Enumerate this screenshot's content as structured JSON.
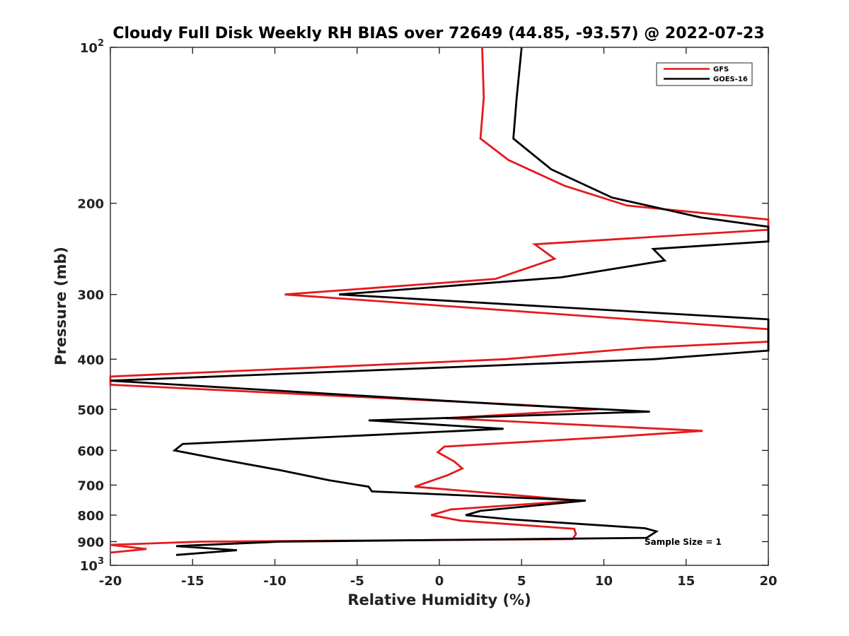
{
  "chart_data": {
    "type": "line",
    "title": "Cloudy Full Disk Weekly RH BIAS over 72649 (44.85, -93.57) @ 2022-07-23",
    "xlabel": "Relative Humidity (%)",
    "ylabel": "Pressure (mb)",
    "xlim": [
      -20,
      20
    ],
    "ylim": [
      1000,
      100
    ],
    "yscale": "log",
    "y_reversed": true,
    "grid": false,
    "legend_position": "top-right",
    "x_ticks": [
      -20,
      -15,
      -10,
      -5,
      0,
      5,
      10,
      15,
      20
    ],
    "x_tick_labels": [
      "-20",
      "-15",
      "-10",
      "-5",
      "0",
      "5",
      "10",
      "15",
      "20"
    ],
    "y_ticks": [
      100,
      200,
      300,
      400,
      500,
      600,
      700,
      800,
      900,
      1000
    ],
    "y_tick_labels": [
      {
        "base": "10",
        "exp": "2"
      },
      {
        "base": "200",
        "exp": ""
      },
      {
        "base": "300",
        "exp": ""
      },
      {
        "base": "400",
        "exp": ""
      },
      {
        "base": "500",
        "exp": ""
      },
      {
        "base": "600",
        "exp": ""
      },
      {
        "base": "700",
        "exp": ""
      },
      {
        "base": "800",
        "exp": ""
      },
      {
        "base": "900",
        "exp": ""
      },
      {
        "base": "10",
        "exp": "3"
      }
    ],
    "annotation": "Sample Size = 1",
    "series": [
      {
        "name": "GFS",
        "color": "#e41a1c",
        "points": [
          [
            2.6,
            100
          ],
          [
            2.7,
            125
          ],
          [
            2.5,
            150
          ],
          [
            4.2,
            165
          ],
          [
            7.6,
            185
          ],
          [
            11.4,
            202
          ],
          [
            20,
            215
          ],
          [
            20,
            225
          ],
          [
            5.8,
            240
          ],
          [
            7.0,
            256
          ],
          [
            3.4,
            280
          ],
          [
            -9.4,
            300
          ],
          [
            20,
            350
          ],
          [
            20,
            370
          ],
          [
            12.5,
            380
          ],
          [
            4.0,
            400
          ],
          [
            -20,
            432
          ],
          [
            -20,
            448
          ],
          [
            5.0,
            490
          ],
          [
            9.6,
            500
          ],
          [
            0.4,
            520
          ],
          [
            16.0,
            550
          ],
          [
            10.5,
            565
          ],
          [
            0.3,
            590
          ],
          [
            -0.1,
            605
          ],
          [
            0.9,
            630
          ],
          [
            1.4,
            650
          ],
          [
            0.5,
            670
          ],
          [
            -1.5,
            705
          ],
          [
            8.5,
            750
          ],
          [
            0.7,
            780
          ],
          [
            -0.5,
            800
          ],
          [
            1.3,
            820
          ],
          [
            8.2,
            850
          ],
          [
            8.3,
            870
          ],
          [
            8.1,
            890
          ],
          [
            -14.5,
            900
          ],
          [
            -20,
            913
          ],
          [
            -17.8,
            930
          ],
          [
            -20,
            945
          ]
        ]
      },
      {
        "name": "GOES-16",
        "color": "#000000",
        "points": [
          [
            5.0,
            100
          ],
          [
            4.7,
            125
          ],
          [
            4.5,
            150
          ],
          [
            6.8,
            172
          ],
          [
            10.5,
            195
          ],
          [
            15.9,
            213
          ],
          [
            20,
            222
          ],
          [
            20,
            237
          ],
          [
            13.0,
            245
          ],
          [
            13.7,
            258
          ],
          [
            7.4,
            278
          ],
          [
            -6.1,
            300
          ],
          [
            20,
            335
          ],
          [
            20,
            385
          ],
          [
            13.0,
            400
          ],
          [
            -20,
            440
          ],
          [
            4.5,
            490
          ],
          [
            12.8,
            505
          ],
          [
            -4.3,
            525
          ],
          [
            3.9,
            545
          ],
          [
            -15.6,
            583
          ],
          [
            -16.1,
            600
          ],
          [
            -13.2,
            625
          ],
          [
            -9.7,
            655
          ],
          [
            -6.7,
            685
          ],
          [
            -4.3,
            705
          ],
          [
            -4.1,
            720
          ],
          [
            8.9,
            750
          ],
          [
            2.5,
            785
          ],
          [
            1.6,
            800
          ],
          [
            4.3,
            815
          ],
          [
            12.5,
            848
          ],
          [
            13.2,
            860
          ],
          [
            12.6,
            885
          ],
          [
            -9.7,
            900
          ],
          [
            -16.0,
            918
          ],
          [
            -12.3,
            935
          ],
          [
            -16.0,
            955
          ]
        ]
      }
    ]
  }
}
